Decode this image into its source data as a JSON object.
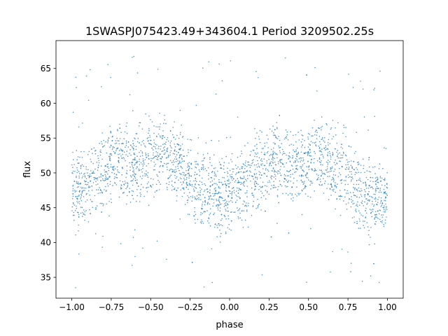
{
  "chart_data": {
    "type": "scatter",
    "title": "1SWASPJ075423.49+343604.1 Period 3209502.25s",
    "xlabel": "phase",
    "ylabel": "flux",
    "xlim": [
      -1.1,
      1.1
    ],
    "ylim": [
      32,
      69
    ],
    "grid": false,
    "legend": "none",
    "x_ticks": [
      -1.0,
      -0.75,
      -0.5,
      -0.25,
      0.0,
      0.25,
      0.5,
      0.75,
      1.0
    ],
    "x_tick_labels": [
      "−1.00",
      "−0.75",
      "−0.50",
      "−0.25",
      "0.00",
      "0.25",
      "0.50",
      "0.75",
      "1.00"
    ],
    "y_ticks": [
      35,
      40,
      45,
      50,
      55,
      60,
      65
    ],
    "y_tick_labels": [
      "35",
      "40",
      "45",
      "50",
      "55",
      "60",
      "65"
    ],
    "point_color": "#1f77b4",
    "series": [
      {
        "phase_period": 1.0,
        "trend_phase": [
          0.0,
          0.05,
          0.1,
          0.15,
          0.2,
          0.25,
          0.3,
          0.35,
          0.4,
          0.45,
          0.5,
          0.55,
          0.6,
          0.65,
          0.7,
          0.75,
          0.8,
          0.85,
          0.9,
          0.95,
          1.0
        ],
        "trend_flux": [
          49,
          48,
          49,
          50,
          51,
          52,
          53,
          52,
          52,
          52,
          52,
          53,
          53,
          52,
          51,
          50,
          49,
          48,
          47,
          47,
          48
        ],
        "typical_range": [
          44,
          56
        ],
        "outlier_range": [
          33.5,
          67
        ]
      }
    ]
  }
}
